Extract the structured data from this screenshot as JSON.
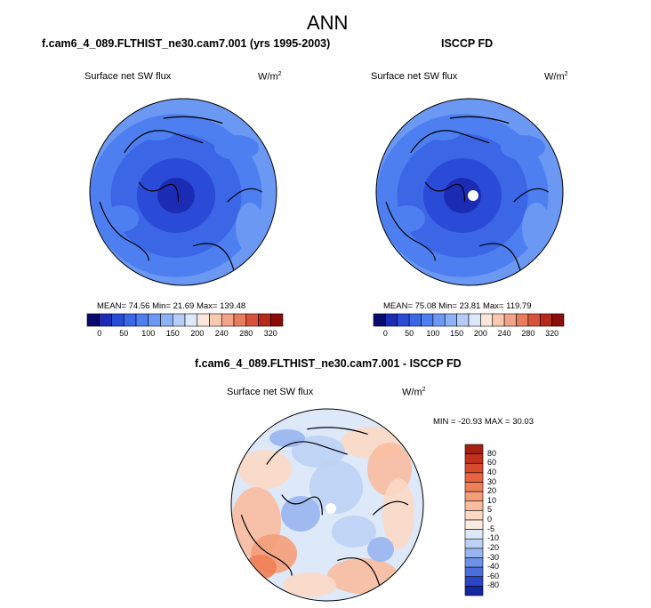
{
  "page_title": "ANN",
  "chart_data": [
    {
      "type": "heatmap",
      "projection": "north polar stereographic",
      "case_title": "f.cam6_4_089.FLTHIST_ne30.cam7.001 (yrs 1995-2003)",
      "variable": "Surface net SW flux",
      "units_base": "W/m",
      "units_exp": "2",
      "stats": {
        "mean": "74.56",
        "min": "21.69",
        "max": "139.48"
      },
      "stats_labels": {
        "mean": "MEAN=",
        "min": "Min=",
        "max": "Max="
      },
      "colorbar": {
        "orientation": "horizontal",
        "tick_labels": [
          "0",
          "50",
          "100",
          "150",
          "200",
          "240",
          "280",
          "320"
        ],
        "colors": [
          "#0a0a6e",
          "#1c2bb4",
          "#2a4bd7",
          "#3b66e6",
          "#4d7ff0",
          "#6b98f3",
          "#8fb2f6",
          "#b6ccf8",
          "#dce8fb",
          "#fce7da",
          "#f9c9b0",
          "#f3a487",
          "#e97c5f",
          "#d6523a",
          "#b52a1c",
          "#8a0d0a"
        ]
      }
    },
    {
      "type": "heatmap",
      "projection": "north polar stereographic",
      "case_title": "ISCCP FD",
      "variable": "Surface net SW flux",
      "units_base": "W/m",
      "units_exp": "2",
      "stats": {
        "mean": "75.08",
        "min": "23.81",
        "max": "119.79"
      },
      "stats_labels": {
        "mean": "MEAN=",
        "min": "Min=",
        "max": "Max="
      },
      "colorbar": {
        "orientation": "horizontal",
        "tick_labels": [
          "0",
          "50",
          "100",
          "150",
          "200",
          "240",
          "280",
          "320"
        ],
        "colors": [
          "#0a0a6e",
          "#1c2bb4",
          "#2a4bd7",
          "#3b66e6",
          "#4d7ff0",
          "#6b98f3",
          "#8fb2f6",
          "#b6ccf8",
          "#dce8fb",
          "#fce7da",
          "#f9c9b0",
          "#f3a487",
          "#e97c5f",
          "#d6523a",
          "#b52a1c",
          "#8a0d0a"
        ]
      }
    },
    {
      "type": "heatmap",
      "projection": "north polar stereographic",
      "case_title": "f.cam6_4_089.FLTHIST_ne30.cam7.001 - ISCCP FD",
      "variable": "Surface net SW flux",
      "units_base": "W/m",
      "units_exp": "2",
      "stats_text": "MIN = -20.93 MAX =  30.03",
      "stats": {
        "min": "-20.93",
        "max": "30.03"
      },
      "colorbar": {
        "orientation": "vertical",
        "tick_labels": [
          "80",
          "60",
          "40",
          "30",
          "20",
          "10",
          "5",
          "0",
          "-5",
          "-10",
          "-20",
          "-30",
          "-40",
          "-60",
          "-80"
        ],
        "colors": [
          "#a52010",
          "#c3311c",
          "#d84a2c",
          "#e8633f",
          "#f07f57",
          "#f49e79",
          "#f8bd9e",
          "#fbd9c5",
          "#fcecdf",
          "#dde8f8",
          "#bcd1f4",
          "#97b5ef",
          "#6f92e8",
          "#4a6fdd",
          "#2a45c6",
          "#15269f"
        ]
      }
    }
  ]
}
